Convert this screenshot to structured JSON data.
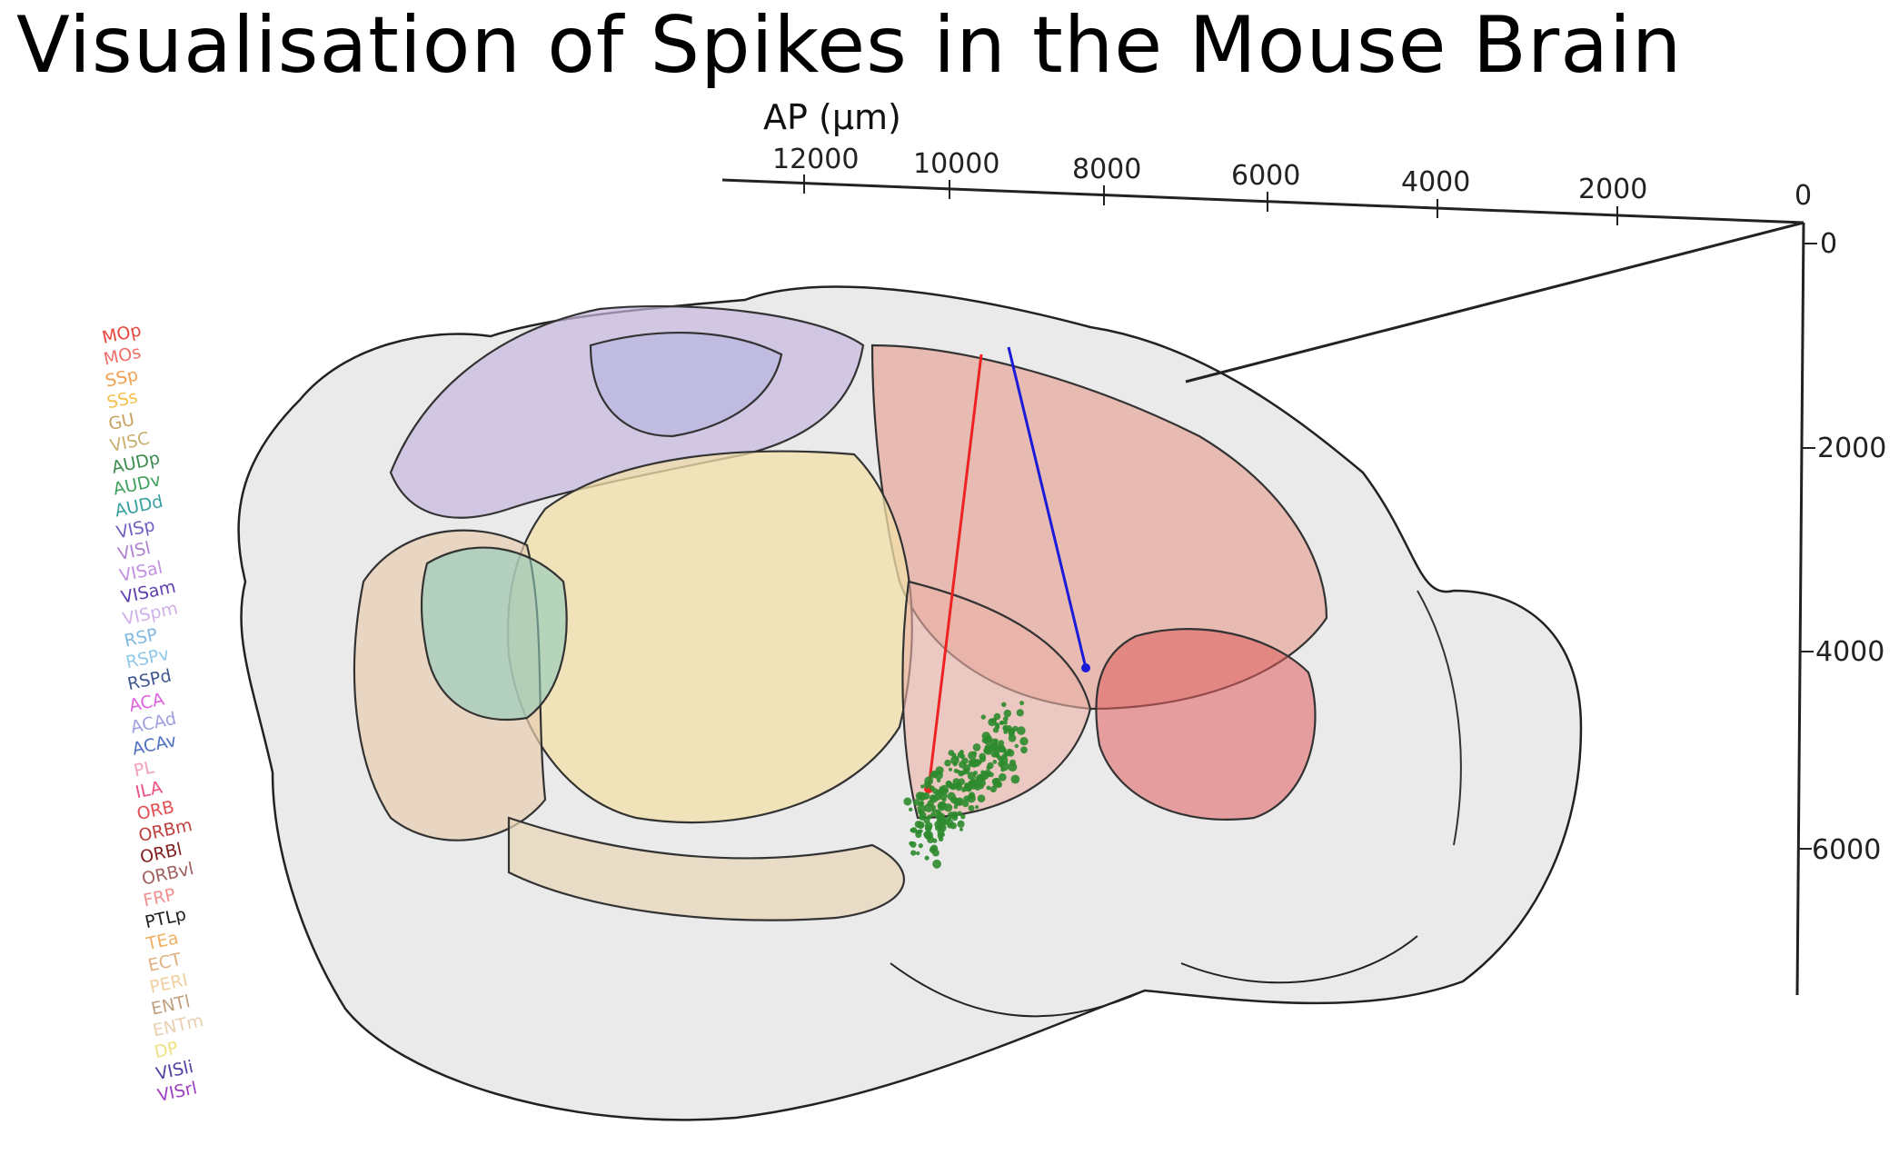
{
  "title": "Visualisation of Spikes in the Mouse Brain",
  "ap_axis": {
    "label": "AP (μm)",
    "ticks": [
      "12000",
      "10000",
      "8000",
      "6000",
      "4000",
      "2000",
      "0"
    ]
  },
  "dv_axis": {
    "ticks": [
      "0",
      "2000",
      "4000",
      "6000"
    ]
  },
  "legend": [
    {
      "label": "MOp",
      "color": "#e8463c"
    },
    {
      "label": "MOs",
      "color": "#f0706a"
    },
    {
      "label": "SSp",
      "color": "#f0a050"
    },
    {
      "label": "SSs",
      "color": "#f5c04a"
    },
    {
      "label": "GU",
      "color": "#c8a060"
    },
    {
      "label": "VISC",
      "color": "#c8b070"
    },
    {
      "label": "AUDp",
      "color": "#3c8c50"
    },
    {
      "label": "AUDv",
      "color": "#40a060"
    },
    {
      "label": "AUDd",
      "color": "#38a0a0"
    },
    {
      "label": "VISp",
      "color": "#7060c0"
    },
    {
      "label": "VISl",
      "color": "#b080d0"
    },
    {
      "label": "VISal",
      "color": "#c090e0"
    },
    {
      "label": "VISam",
      "color": "#6040b0"
    },
    {
      "label": "VISpm",
      "color": "#d0b0e8"
    },
    {
      "label": "RSP",
      "color": "#80b8e0"
    },
    {
      "label": "RSPv",
      "color": "#90c8e8"
    },
    {
      "label": "RSPd",
      "color": "#405890"
    },
    {
      "label": "ACA",
      "color": "#e060e0"
    },
    {
      "label": "ACAd",
      "color": "#a0a0e0"
    },
    {
      "label": "ACAv",
      "color": "#5070c0"
    },
    {
      "label": "PL",
      "color": "#f0a0c0"
    },
    {
      "label": "ILA",
      "color": "#f05080"
    },
    {
      "label": "ORB",
      "color": "#e05050"
    },
    {
      "label": "ORBm",
      "color": "#c04040"
    },
    {
      "label": "ORBl",
      "color": "#802020"
    },
    {
      "label": "ORBvl",
      "color": "#a06060"
    },
    {
      "label": "FRP",
      "color": "#f09090"
    },
    {
      "label": "PTLp",
      "color": "#202020"
    },
    {
      "label": "TEa",
      "color": "#f0b060"
    },
    {
      "label": "ECT",
      "color": "#e0b080"
    },
    {
      "label": "PERI",
      "color": "#f0d0a0"
    },
    {
      "label": "ENTl",
      "color": "#c0a080"
    },
    {
      "label": "ENTm",
      "color": "#e8d0b0"
    },
    {
      "label": "DP",
      "color": "#f0e080"
    },
    {
      "label": "VISli",
      "color": "#5040a0"
    },
    {
      "label": "VISrl",
      "color": "#a040c0"
    }
  ],
  "probes": [
    {
      "color": "#ee2222"
    },
    {
      "color": "#1a1ad8"
    }
  ],
  "spike_color": "#2e8b2e"
}
